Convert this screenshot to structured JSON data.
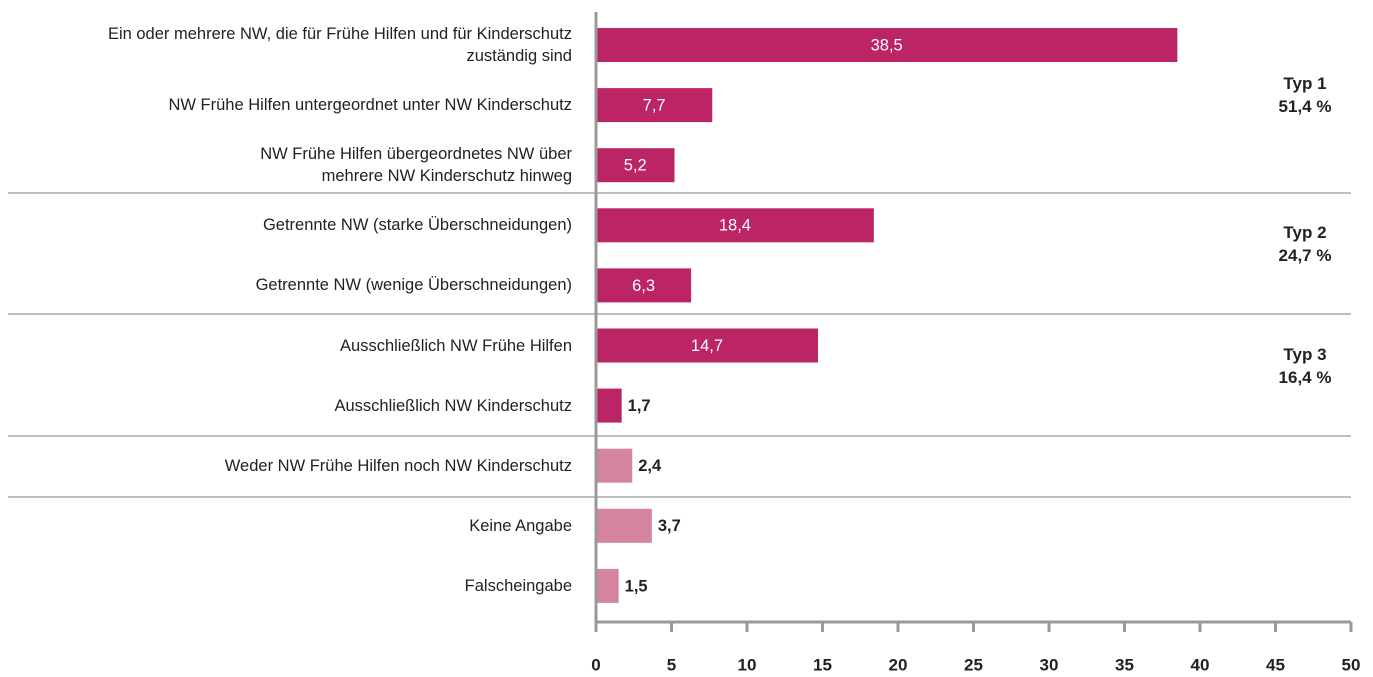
{
  "chart_data": {
    "type": "bar",
    "orientation": "horizontal",
    "categories": [
      "Ein oder mehrere NW, die für Frühe Hilfen und für Kinderschutz\nzuständig sind",
      "NW Frühe Hilfen untergeordnet unter NW Kinderschutz",
      "NW Frühe Hilfen übergeordnetes NW über\nmehrere NW Kinderschutz hinweg",
      "Getrennte NW (starke Überschneidungen)",
      "Getrennte NW (wenige Überschneidungen)",
      "Ausschließlich NW Frühe Hilfen",
      "Ausschließlich NW Kinderschutz",
      "Weder NW Frühe Hilfen noch NW Kinderschutz",
      "Keine Angabe",
      "Falscheingabe"
    ],
    "values": [
      38.5,
      7.7,
      5.2,
      18.4,
      6.3,
      14.7,
      1.7,
      2.4,
      3.7,
      1.5
    ],
    "value_labels": [
      "38,5",
      "7,7",
      "5,2",
      "18,4",
      "6,3",
      "14,7",
      "1,7",
      "2,4",
      "3,7",
      "1,5"
    ],
    "colors": [
      "#bb2566",
      "#bb2566",
      "#bb2566",
      "#bb2566",
      "#bb2566",
      "#bb2566",
      "#bb2566",
      "#d4849f",
      "#d4849f",
      "#d4849f"
    ],
    "xlim": [
      0,
      50
    ],
    "xticks": [
      0,
      5,
      10,
      15,
      20,
      25,
      30,
      35,
      40,
      45,
      50
    ],
    "annotations": [
      "Typ 1\n51,4 %",
      "Typ 2\n24,7 %",
      "Typ 3\n16,4 %"
    ]
  }
}
